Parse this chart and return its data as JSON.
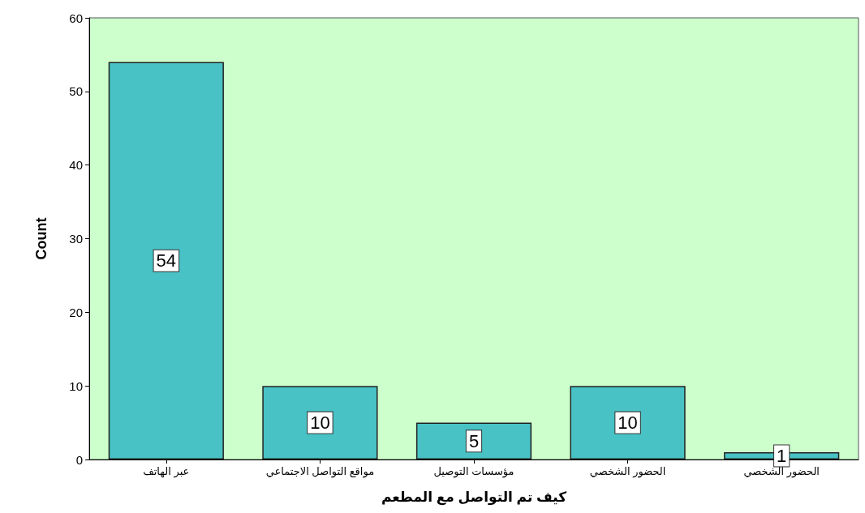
{
  "chart_data": {
    "type": "bar",
    "xlabel": "كيف تم التواصل مع المطعم",
    "ylabel": "Count",
    "categories": [
      "عبر الهاتف",
      "مواقع التواصل الاجتماعي",
      "مؤسسات التوصيل",
      "الحضور الشخصي",
      "الحضور الشخصي"
    ],
    "values": [
      54,
      10,
      5,
      10,
      1
    ],
    "color": "#48c2c5",
    "ylim": [
      0,
      60
    ],
    "yticks": [
      0,
      10,
      20,
      30,
      40,
      50,
      60
    ],
    "grid": false,
    "data_labels": true
  }
}
